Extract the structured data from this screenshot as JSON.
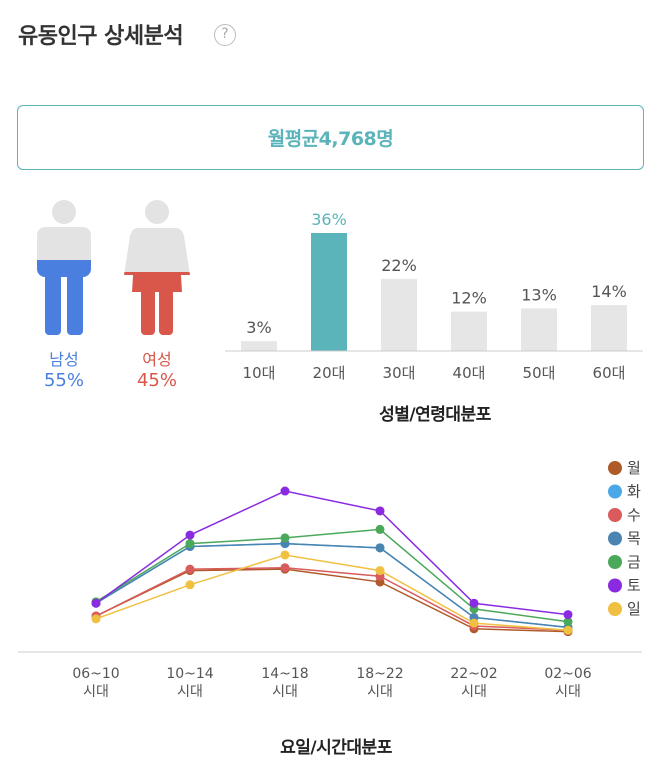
{
  "header": {
    "title": "유동인구 상세분석",
    "help_icon": "?"
  },
  "summary": {
    "monthly_avg": "월평균4,768명"
  },
  "gender": {
    "male": {
      "label": "남성",
      "pct": "55%",
      "color": "#4a7fe0"
    },
    "female": {
      "label": "여성",
      "pct": "45%",
      "color": "#d9564a"
    }
  },
  "age_section_title": "성별/연령대분포",
  "time_section_title": "요일/시간대분포",
  "chart_data": [
    {
      "type": "bar",
      "title": "성별/연령대분포",
      "categories": [
        "10대",
        "20대",
        "30대",
        "40대",
        "50대",
        "60대"
      ],
      "values": [
        3,
        36,
        22,
        12,
        13,
        14
      ],
      "value_labels": [
        "3%",
        "36%",
        "22%",
        "12%",
        "13%",
        "14%"
      ],
      "highlight_index": 1,
      "highlight_color": "#5ab4b9",
      "bar_color": "#e6e6e6",
      "ylim": [
        0,
        40
      ]
    },
    {
      "type": "line",
      "title": "요일/시간대분포",
      "categories": [
        "06~10\n시대",
        "10~14\n시대",
        "14~18\n시대",
        "18~22\n시대",
        "22~02\n시대",
        "02~06\n시대"
      ],
      "legend_position": "right",
      "ylim": [
        0,
        100
      ],
      "series": [
        {
          "name": "월",
          "color": "#b05a2a",
          "values": [
            19,
            51,
            52,
            43,
            10,
            8
          ]
        },
        {
          "name": "화",
          "color": "#4aa8e8",
          "values": [
            28,
            68,
            70,
            67,
            18,
            11
          ]
        },
        {
          "name": "수",
          "color": "#d95b5b",
          "values": [
            19,
            52,
            53,
            47,
            12,
            9
          ]
        },
        {
          "name": "목",
          "color": "#4a84b0",
          "values": [
            28,
            68,
            70,
            67,
            18,
            11
          ]
        },
        {
          "name": "금",
          "color": "#4aa85a",
          "values": [
            29,
            70,
            74,
            80,
            24,
            15
          ]
        },
        {
          "name": "토",
          "color": "#8a2be2",
          "values": [
            28,
            76,
            107,
            93,
            28,
            20
          ]
        },
        {
          "name": "일",
          "color": "#f0c040",
          "values": [
            17,
            41,
            62,
            51,
            14,
            9
          ]
        }
      ]
    }
  ]
}
